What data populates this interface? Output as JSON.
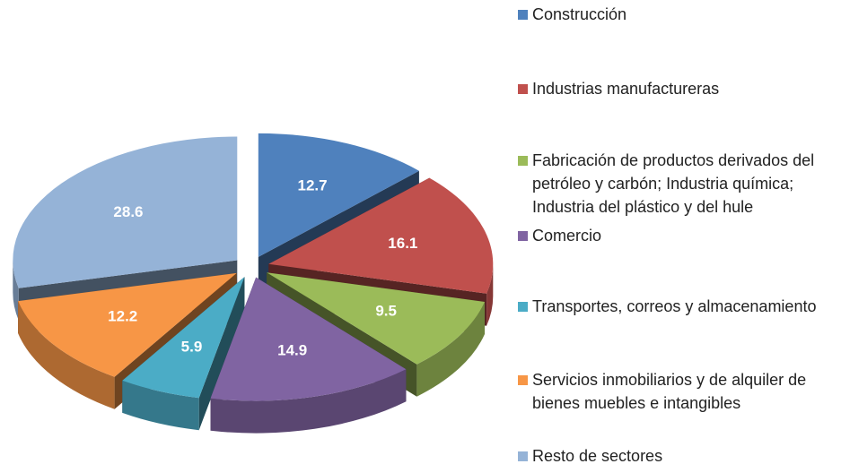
{
  "chart_data": {
    "type": "pie3d",
    "categories": [
      "Construcción",
      "Industrias manufactureras",
      "Fabricación de productos derivados del petróleo y carbón; Industria química; Industria del plástico y del hule",
      "Comercio",
      "Transportes, correos y almacenamiento",
      "Servicios inmobiliarios y de alquiler de bienes muebles e intangibles",
      "Resto de sectores"
    ],
    "values": [
      12.7,
      16.1,
      9.5,
      14.9,
      5.9,
      12.2,
      28.6
    ],
    "colors": [
      "#4f81bd",
      "#c0504d",
      "#9bbb59",
      "#8064a2",
      "#4bacc6",
      "#f79646",
      "#95b3d7"
    ],
    "legend": "right"
  }
}
